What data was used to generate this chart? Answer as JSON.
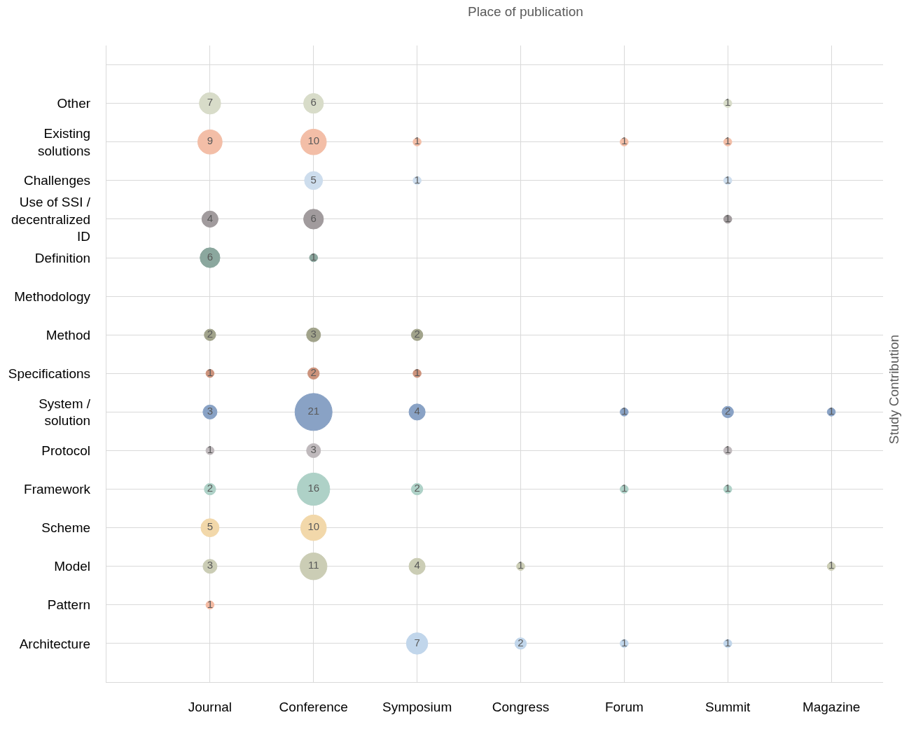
{
  "chart_data": {
    "type": "heatmap",
    "xlabel": "Place of publication",
    "ylabel": "Study Contribution",
    "categories": [
      "Journal",
      "Conference",
      "Symposium",
      "Congress",
      "Forum",
      "Summit",
      "Magazine"
    ],
    "y_categories": [
      "Other",
      "Existing solutions",
      "Challenges",
      "Use of SSI / decentralized ID",
      "Definition",
      "Methodology",
      "Method",
      "Specifications",
      "System / solution",
      "Protocol",
      "Framework",
      "Scheme",
      "Model",
      "Pattern",
      "Architecture"
    ],
    "grid": true,
    "data_labels": true,
    "colors": [
      "#d8dcc9",
      "#f3bea7",
      "#cddded",
      "#a19b9d",
      "#8ba79e",
      null,
      "#a1a38b",
      "#cc937c",
      "#89a2c5",
      "#bfb9bc",
      "#aed1c7",
      "#f2d8aa",
      "#cbcdb5",
      "#f4baa2",
      "#c1d6eb"
    ],
    "cells": [
      [
        7,
        6,
        null,
        null,
        null,
        1,
        null
      ],
      [
        9,
        10,
        1,
        null,
        1,
        1,
        null
      ],
      [
        null,
        5,
        1,
        null,
        null,
        1,
        null
      ],
      [
        4,
        6,
        null,
        null,
        null,
        1,
        null
      ],
      [
        6,
        1,
        null,
        null,
        null,
        null,
        null
      ],
      [
        null,
        null,
        null,
        null,
        null,
        null,
        null
      ],
      [
        2,
        3,
        2,
        null,
        null,
        null,
        null
      ],
      [
        1,
        2,
        1,
        null,
        null,
        null,
        null
      ],
      [
        3,
        21,
        4,
        null,
        1,
        2,
        1
      ],
      [
        1,
        3,
        null,
        null,
        null,
        1,
        null
      ],
      [
        2,
        16,
        2,
        null,
        1,
        1,
        null
      ],
      [
        5,
        10,
        null,
        null,
        null,
        null,
        null
      ],
      [
        3,
        11,
        4,
        1,
        null,
        null,
        1
      ],
      [
        1,
        null,
        null,
        null,
        null,
        null,
        null
      ],
      [
        null,
        null,
        7,
        2,
        1,
        1,
        null
      ]
    ]
  }
}
